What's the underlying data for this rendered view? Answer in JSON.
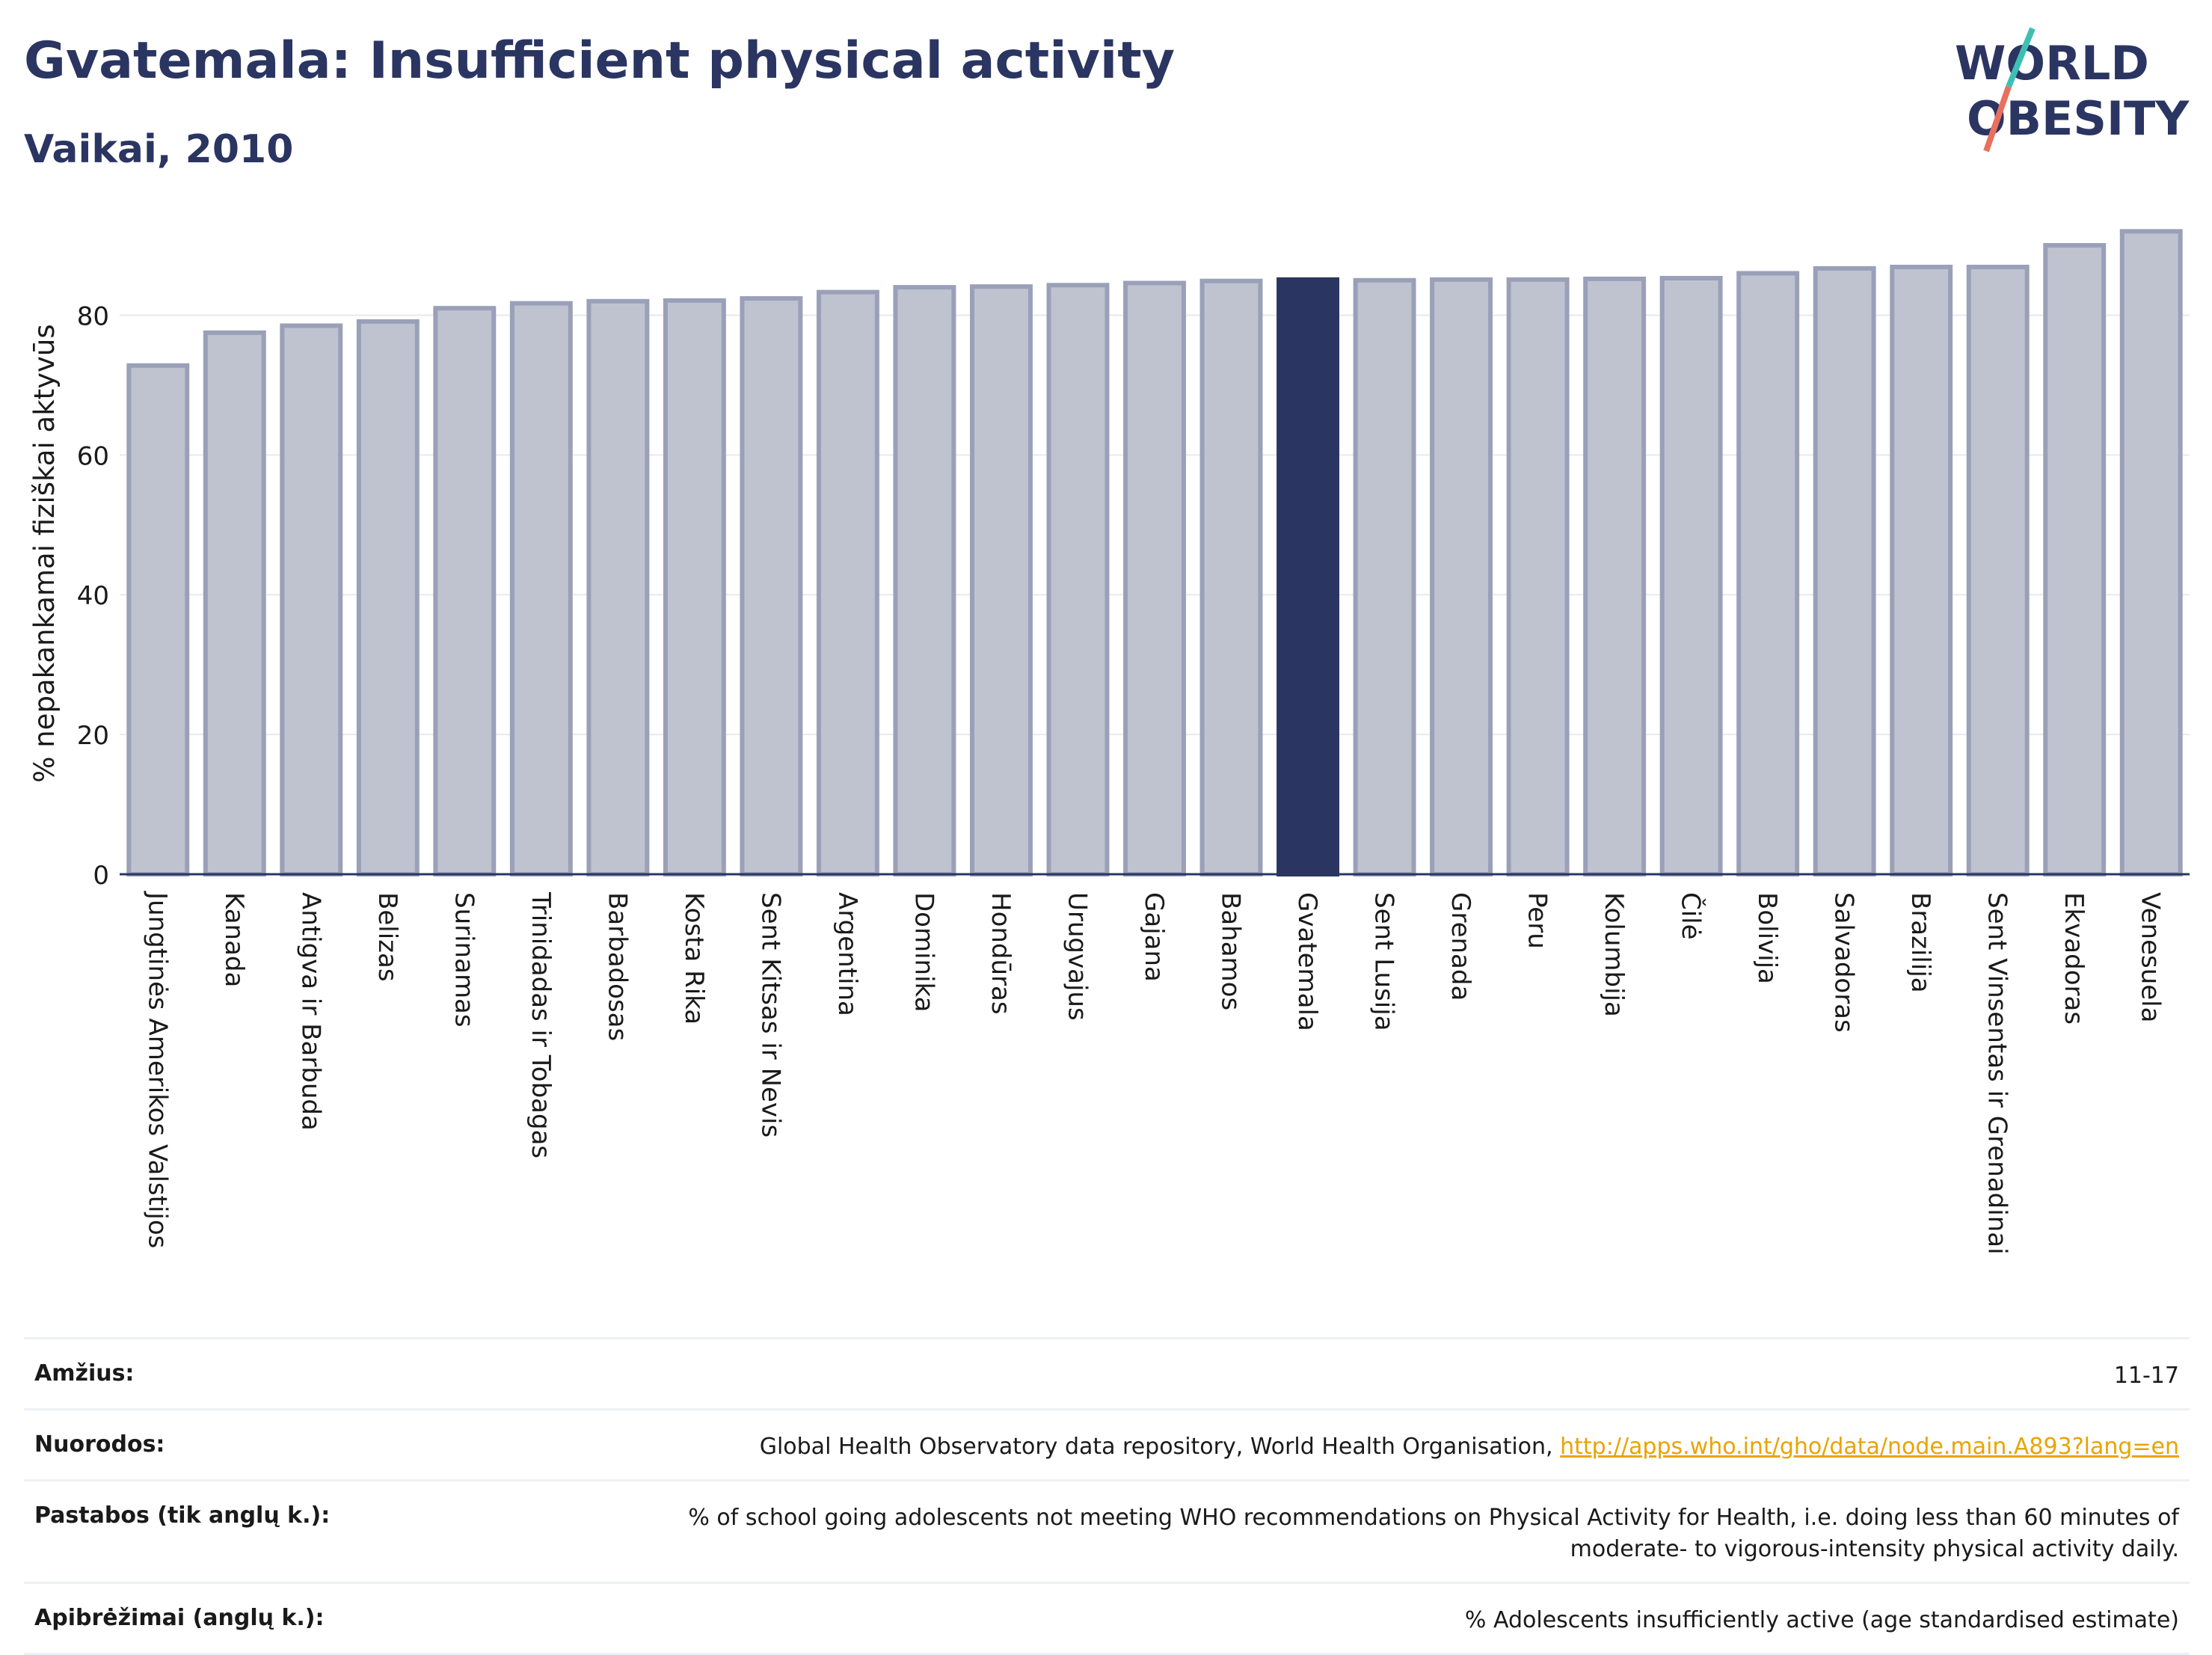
{
  "header": {
    "title": "Gvatemala: Insufficient physical activity",
    "subtitle": "Vaikai, 2010",
    "logo_line1": "WORLD",
    "logo_line2": "OBESITY"
  },
  "colors": {
    "highlight": "#2b3562",
    "bar_fill": "#bfc3d0",
    "bar_stroke": "#9aa0b8",
    "title": "#2b3562",
    "link": "#e8a400",
    "logo_teal": "#3fbfb4",
    "logo_coral": "#e8705e"
  },
  "chart_data": {
    "type": "bar",
    "ylabel": "% nepakankamai fiziškai aktyvūs",
    "xlabel": "",
    "ylim": [
      0,
      93
    ],
    "yticks": [
      0,
      20,
      40,
      60,
      80
    ],
    "grid": true,
    "highlight_category": "Gvatemala",
    "categories": [
      "Jungtinės Amerikos Valstijos",
      "Kanada",
      "Antigva ir Barbuda",
      "Belizas",
      "Surinamas",
      "Trinidadas ir Tobagas",
      "Barbadosas",
      "Kosta Rika",
      "Sent Kitsas ir Nevis",
      "Argentina",
      "Dominika",
      "Hondūras",
      "Urugvajus",
      "Gajana",
      "Bahamos",
      "Gvatemala",
      "Sent Lusija",
      "Grenada",
      "Peru",
      "Kolumbija",
      "Čilė",
      "Bolivija",
      "Salvadoras",
      "Brazilija",
      "Sent Vinsentas ir Grenadinai",
      "Ekvadoras",
      "Venesuela"
    ],
    "values": [
      72.8,
      77.5,
      78.5,
      79.1,
      81.0,
      81.7,
      82.0,
      82.1,
      82.4,
      83.3,
      84.0,
      84.1,
      84.3,
      84.6,
      84.9,
      85.1,
      85.0,
      85.1,
      85.1,
      85.2,
      85.3,
      86.0,
      86.7,
      86.9,
      86.9,
      90.0,
      92.0
    ]
  },
  "meta": {
    "rows": [
      {
        "label": "Amžius:",
        "value": "11-17"
      },
      {
        "label": "Nuorodos:",
        "value": "Global Health Observatory data repository, World Health Organisation,",
        "link": "http://apps.who.int/gho/data/node.main.A893?lang=en"
      },
      {
        "label": "Pastabos (tik anglų k.):",
        "value": "% of school going adolescents not meeting WHO recommendations on Physical Activity for Health, i.e. doing less than 60 minutes of moderate- to vigorous-intensity physical activity daily."
      },
      {
        "label": "Apibrėžimai (anglų k.):",
        "value": "% Adolescents insufficiently active (age standardised estimate)"
      }
    ]
  }
}
